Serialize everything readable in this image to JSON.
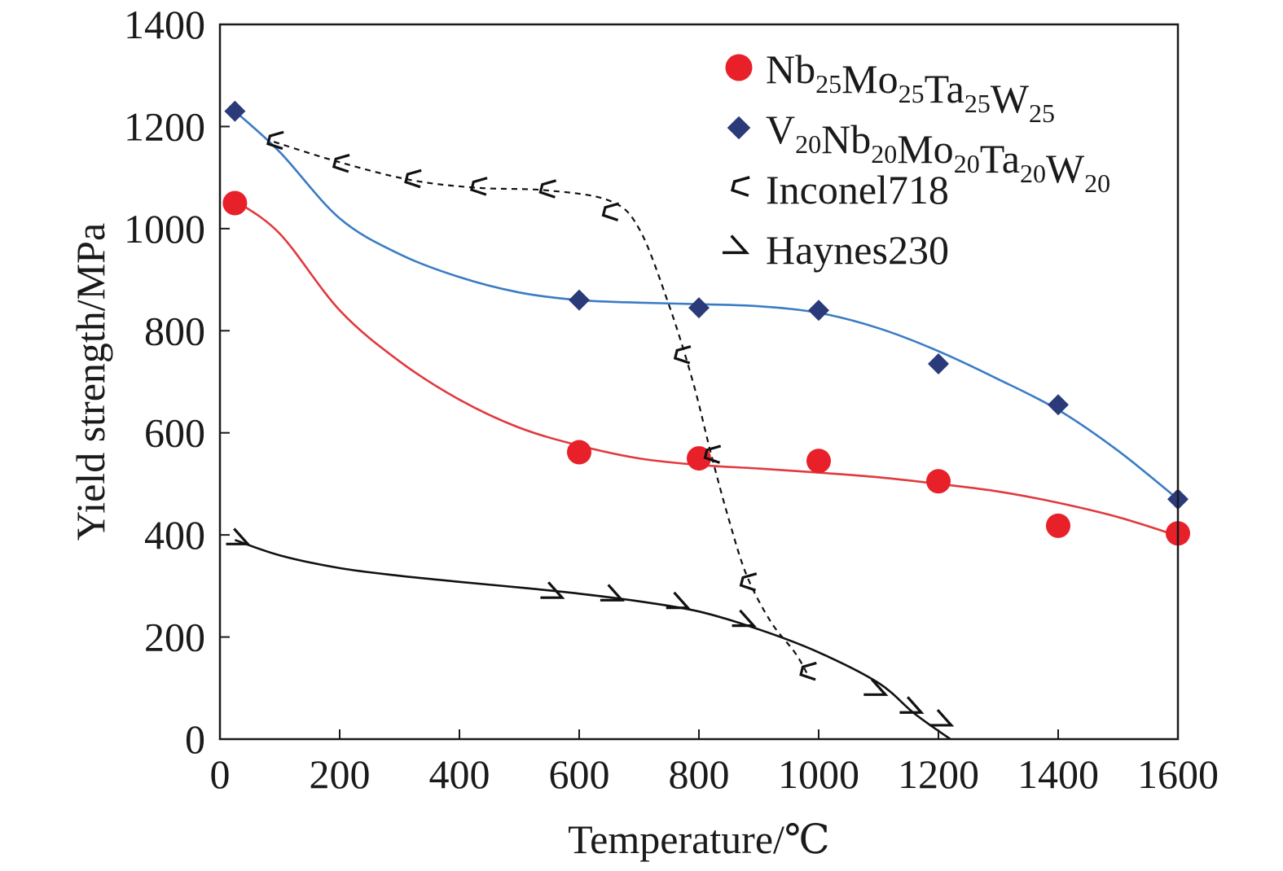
{
  "chart_data": {
    "type": "line",
    "title": "",
    "xlabel": "Temperature/℃",
    "ylabel": "Yield strength/MPa",
    "xlim": [
      0,
      1600
    ],
    "ylim": [
      0,
      1400
    ],
    "xticks": [
      0,
      200,
      400,
      600,
      800,
      1000,
      1200,
      1400,
      1600
    ],
    "yticks": [
      0,
      200,
      400,
      600,
      800,
      1000,
      1200,
      1400
    ],
    "grid": false,
    "legend_position": "top-right",
    "series": [
      {
        "name": "Nb25Mo25Ta25W25",
        "legend_parts": [
          [
            "Nb",
            "25"
          ],
          [
            "Mo",
            "25"
          ],
          [
            "Ta",
            "25"
          ],
          [
            "W",
            "25"
          ]
        ],
        "marker": "circle",
        "color": "#e8202a",
        "line_color": "#e03a3e",
        "line_style": "solid",
        "points": [
          [
            25,
            1050
          ],
          [
            600,
            562
          ],
          [
            800,
            550
          ],
          [
            1000,
            545
          ],
          [
            1200,
            505
          ],
          [
            1400,
            418
          ],
          [
            1600,
            403
          ]
        ],
        "fit": [
          [
            25,
            1055
          ],
          [
            100,
            990
          ],
          [
            200,
            840
          ],
          [
            300,
            740
          ],
          [
            400,
            665
          ],
          [
            500,
            610
          ],
          [
            600,
            575
          ],
          [
            700,
            550
          ],
          [
            800,
            537
          ],
          [
            900,
            530
          ],
          [
            1000,
            522
          ],
          [
            1100,
            513
          ],
          [
            1200,
            500
          ],
          [
            1300,
            485
          ],
          [
            1400,
            463
          ],
          [
            1500,
            435
          ],
          [
            1600,
            398
          ]
        ]
      },
      {
        "name": "V20Nb20Mo20Ta20W20",
        "legend_parts": [
          [
            "V",
            "20"
          ],
          [
            "Nb",
            "20"
          ],
          [
            "Mo",
            "20"
          ],
          [
            "Ta",
            "20"
          ],
          [
            "W",
            "20"
          ]
        ],
        "marker": "diamond",
        "color": "#2b3a78",
        "line_color": "#3a7cc4",
        "line_style": "solid",
        "points": [
          [
            25,
            1230
          ],
          [
            600,
            860
          ],
          [
            800,
            845
          ],
          [
            1000,
            840
          ],
          [
            1200,
            735
          ],
          [
            1400,
            655
          ],
          [
            1600,
            470
          ]
        ],
        "fit": [
          [
            25,
            1230
          ],
          [
            100,
            1150
          ],
          [
            200,
            1020
          ],
          [
            300,
            950
          ],
          [
            400,
            905
          ],
          [
            500,
            875
          ],
          [
            600,
            860
          ],
          [
            700,
            855
          ],
          [
            800,
            852
          ],
          [
            900,
            848
          ],
          [
            1000,
            835
          ],
          [
            1100,
            805
          ],
          [
            1200,
            760
          ],
          [
            1300,
            705
          ],
          [
            1400,
            645
          ],
          [
            1500,
            565
          ],
          [
            1600,
            470
          ]
        ]
      },
      {
        "name": "Inconel718",
        "legend_parts": [
          [
            "Inconel718",
            ""
          ]
        ],
        "marker": "open-corner",
        "color": "#111111",
        "line_color": "#111111",
        "line_style": "dashed",
        "points": [
          [
            90,
            1170
          ],
          [
            200,
            1125
          ],
          [
            320,
            1095
          ],
          [
            430,
            1080
          ],
          [
            545,
            1075
          ],
          [
            650,
            1030
          ],
          [
            770,
            750
          ],
          [
            820,
            555
          ],
          [
            880,
            305
          ],
          [
            980,
            130
          ]
        ],
        "fit": [
          [
            90,
            1170
          ],
          [
            200,
            1130
          ],
          [
            320,
            1095
          ],
          [
            430,
            1080
          ],
          [
            545,
            1075
          ],
          [
            650,
            1055
          ],
          [
            700,
            1000
          ],
          [
            750,
            850
          ],
          [
            790,
            700
          ],
          [
            820,
            560
          ],
          [
            850,
            430
          ],
          [
            880,
            320
          ],
          [
            920,
            230
          ],
          [
            960,
            170
          ],
          [
            980,
            130
          ]
        ]
      },
      {
        "name": "Haynes230",
        "legend_parts": [
          [
            "Haynes230",
            ""
          ]
        ],
        "marker": "open-wedge",
        "color": "#111111",
        "line_color": "#111111",
        "line_style": "solid",
        "points": [
          [
            35,
            390
          ],
          [
            560,
            285
          ],
          [
            660,
            280
          ],
          [
            770,
            265
          ],
          [
            880,
            230
          ],
          [
            1100,
            95
          ],
          [
            1160,
            60
          ],
          [
            1210,
            35
          ]
        ],
        "fit": [
          [
            25,
            390
          ],
          [
            100,
            360
          ],
          [
            200,
            335
          ],
          [
            300,
            320
          ],
          [
            400,
            308
          ],
          [
            500,
            297
          ],
          [
            600,
            285
          ],
          [
            700,
            270
          ],
          [
            800,
            250
          ],
          [
            900,
            215
          ],
          [
            1000,
            170
          ],
          [
            1100,
            110
          ],
          [
            1160,
            50
          ],
          [
            1220,
            0
          ]
        ]
      }
    ]
  }
}
